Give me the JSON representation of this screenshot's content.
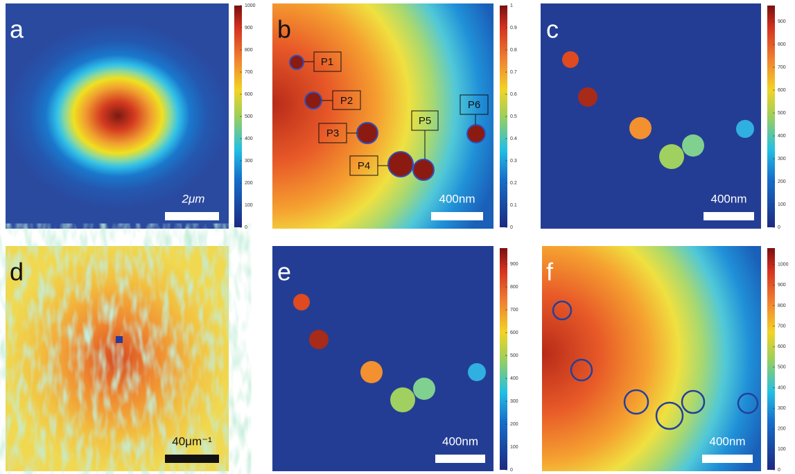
{
  "panels": [
    {
      "label": "a",
      "scale_bar": "2μm",
      "colorbar": {
        "lim": [
          0,
          1000
        ],
        "ticks": [
          0,
          100,
          200,
          300,
          400,
          500,
          600,
          700,
          800,
          900,
          1000
        ]
      }
    },
    {
      "label": "b",
      "scale_bar": "400nm",
      "colorbar": {
        "lim": [
          0,
          1
        ],
        "ticks": [
          0,
          0.1,
          0.2,
          0.3,
          0.4,
          0.5,
          0.6,
          0.7,
          0.8,
          0.9,
          1
        ]
      },
      "points": [
        "P1",
        "P2",
        "P3",
        "P4",
        "P5",
        "P6"
      ]
    },
    {
      "label": "c",
      "scale_bar": "400nm",
      "colorbar": {
        "lim": [
          0,
          970
        ],
        "ticks": [
          0,
          100,
          200,
          300,
          400,
          500,
          600,
          700,
          800,
          900
        ]
      }
    },
    {
      "label": "d",
      "scale_bar": "40μm⁻¹"
    },
    {
      "label": "e",
      "scale_bar": "400nm",
      "colorbar": {
        "lim": [
          0,
          970
        ],
        "ticks": [
          0,
          100,
          200,
          300,
          400,
          500,
          600,
          700,
          800,
          900
        ]
      }
    },
    {
      "label": "f",
      "scale_bar": "400nm",
      "colorbar": {
        "lim": [
          0,
          1080
        ],
        "ticks": [
          0,
          100,
          200,
          300,
          400,
          500,
          600,
          700,
          800,
          900,
          1000
        ]
      }
    }
  ]
}
